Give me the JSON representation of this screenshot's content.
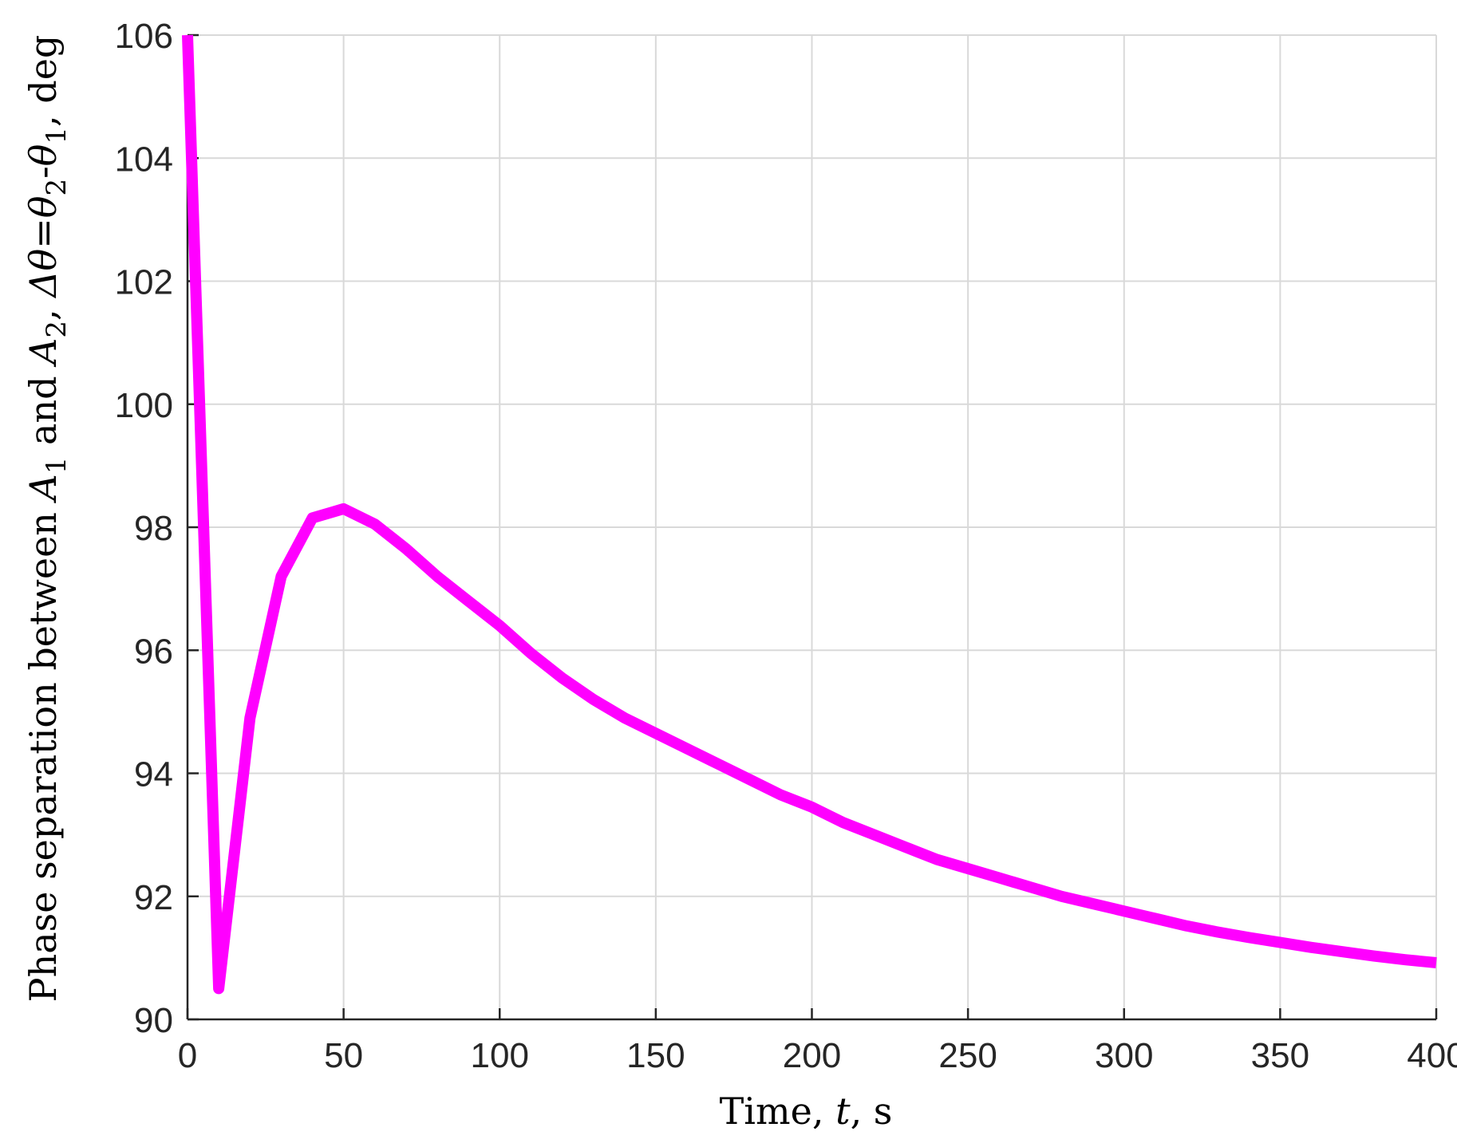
{
  "chart_data": {
    "type": "line",
    "xlabel": {
      "pre": "Time,  ",
      "var": "t",
      "post": ", s"
    },
    "ylabel": {
      "p1": "Phase separation between ",
      "a1": "A",
      "a1sub": "1",
      "p2": " and ",
      "a2": "A",
      "a2sub": "2",
      "p3": ", ",
      "delta": "Δθ",
      "eq": "=",
      "th2": "θ",
      "th2sub": "2",
      "minus": "-",
      "th1": "θ",
      "th1sub": "1",
      "p4": ", deg"
    },
    "xlim": [
      0,
      400
    ],
    "ylim": [
      90,
      106
    ],
    "xticks": [
      "0",
      "50",
      "100",
      "150",
      "200",
      "250",
      "300",
      "350",
      "400"
    ],
    "yticks": [
      "90",
      "92",
      "94",
      "96",
      "98",
      "100",
      "102",
      "104",
      "106"
    ],
    "grid": true,
    "series": [
      {
        "color": "#ff00ff",
        "x": [
          0,
          10,
          20,
          30,
          40,
          50,
          60,
          70,
          80,
          90,
          100,
          110,
          120,
          130,
          140,
          150,
          160,
          170,
          180,
          190,
          200,
          210,
          220,
          230,
          240,
          250,
          260,
          270,
          280,
          290,
          300,
          310,
          320,
          330,
          340,
          350,
          360,
          370,
          380,
          390,
          400
        ],
        "values": [
          106,
          90.5,
          94.9,
          97.2,
          98.15,
          98.3,
          98.05,
          97.65,
          97.2,
          96.8,
          96.4,
          95.95,
          95.55,
          95.2,
          94.9,
          94.65,
          94.4,
          94.15,
          93.9,
          93.65,
          93.45,
          93.2,
          93.0,
          92.8,
          92.6,
          92.45,
          92.3,
          92.15,
          92.0,
          91.88,
          91.76,
          91.64,
          91.52,
          91.42,
          91.33,
          91.25,
          91.17,
          91.1,
          91.03,
          90.97,
          90.92
        ]
      }
    ]
  }
}
